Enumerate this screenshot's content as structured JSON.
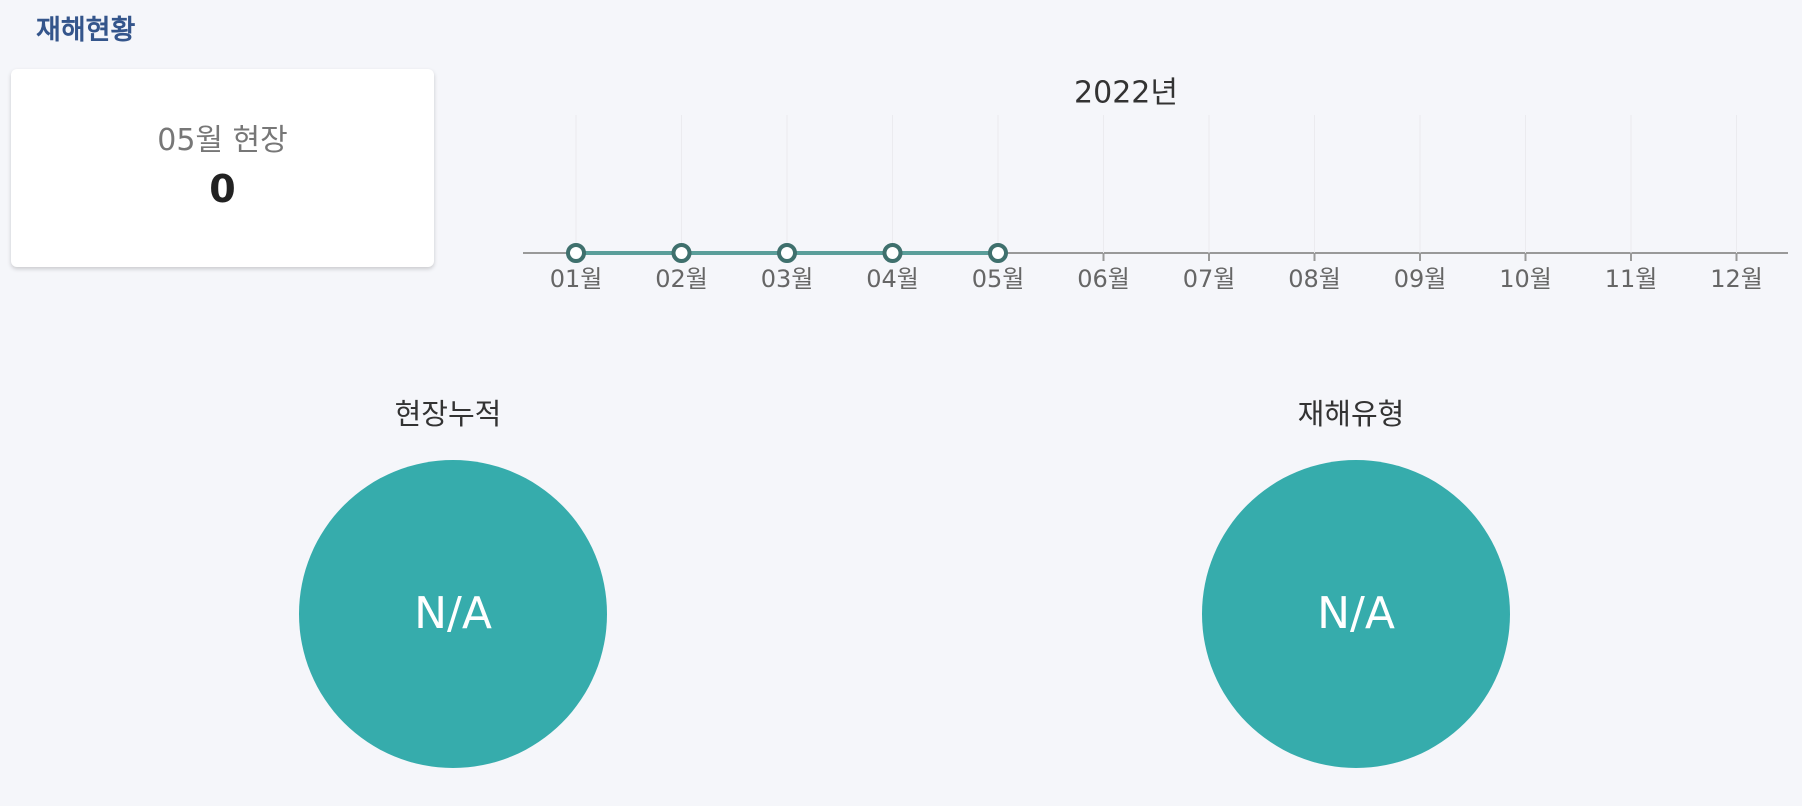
{
  "header": {
    "title": "재해현황"
  },
  "card": {
    "label": "05월 현장",
    "value": 0
  },
  "chart_data": {
    "type": "line",
    "title": "2022년",
    "categories": [
      "01월",
      "02월",
      "03월",
      "04월",
      "05월",
      "06월",
      "07월",
      "08월",
      "09월",
      "10월",
      "11월",
      "12월"
    ],
    "values": [
      0,
      0,
      0,
      0,
      0,
      null,
      null,
      null,
      null,
      null,
      null,
      null
    ],
    "color": "#5a9e9a",
    "marker_color": "#3f706d",
    "grid": true
  },
  "pies": [
    {
      "title": "현장누적",
      "label": "N/A",
      "color": "#36acac"
    },
    {
      "title": "재해유형",
      "label": "N/A",
      "color": "#36acac"
    }
  ]
}
